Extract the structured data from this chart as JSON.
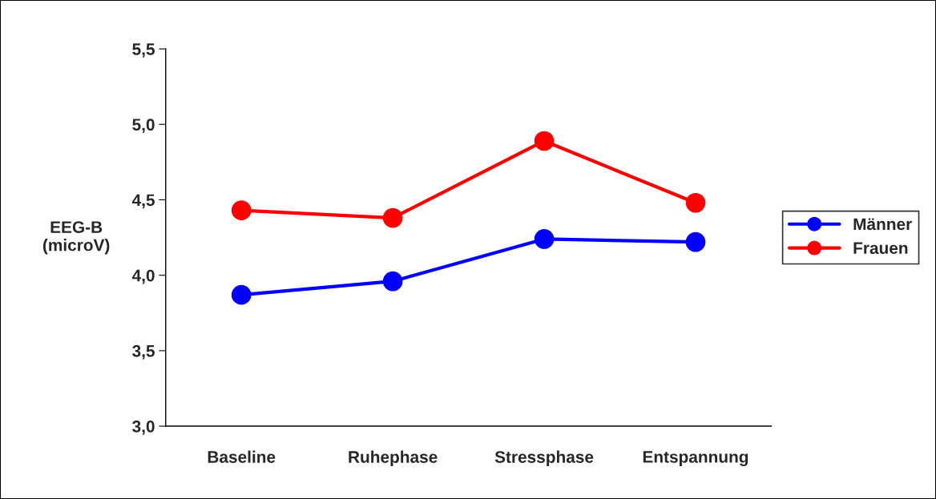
{
  "chart_data": {
    "type": "line",
    "ylabel": "EEG-B\n(microV)",
    "categories": [
      "Baseline",
      "Ruhephase",
      "Stressphase",
      "Entspannung"
    ],
    "series": [
      {
        "name": "Männer",
        "color": "#0000ff",
        "values": [
          3.87,
          3.96,
          4.24,
          4.22
        ]
      },
      {
        "name": "Frauen",
        "color": "#ff0000",
        "values": [
          4.43,
          4.38,
          4.89,
          4.48
        ]
      }
    ],
    "ylim": [
      3.0,
      5.5
    ],
    "yticks": [
      {
        "value": 3.0,
        "label": "3,0"
      },
      {
        "value": 3.5,
        "label": "3,5"
      },
      {
        "value": 4.0,
        "label": "4,0"
      },
      {
        "value": 4.5,
        "label": "4,5"
      },
      {
        "value": 5.0,
        "label": "5,0"
      },
      {
        "value": 5.5,
        "label": "5,5"
      }
    ],
    "grid": false,
    "legend": "right",
    "marker": "circle",
    "line_style": "solid"
  }
}
